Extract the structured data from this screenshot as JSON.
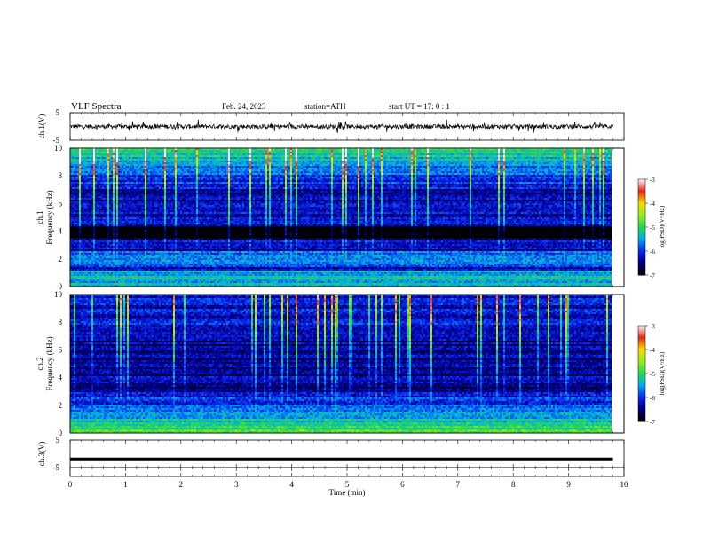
{
  "header": {
    "title": "VLF  Spectra",
    "date": "Feb. 24, 2023",
    "station": "station=ATH",
    "start_ut": "start  UT  =   17: 0  : 1"
  },
  "chart_data": [
    {
      "type": "line",
      "name": "ch1-waveform",
      "ylabel": "ch.1(V)",
      "ylim": [
        -5,
        5
      ],
      "y_ticks": [
        "5",
        "-5"
      ],
      "x_range_min": [
        0,
        9.8
      ],
      "signal_level": 0,
      "noise_amplitude": 0.8
    },
    {
      "type": "heatmap",
      "name": "ch1-spectrogram",
      "ylabel": "Frequency  (kHz)",
      "channel_label": "ch.1",
      "ylim": [
        0,
        10
      ],
      "y_ticks": [
        "10",
        "8",
        "6",
        "4",
        "2",
        "0"
      ],
      "colorbar": {
        "label": "log(PSD)(V²/Hz)",
        "range": [
          -7,
          -3
        ],
        "ticks": [
          "-3",
          "-4",
          "-5",
          "-6",
          "-7"
        ]
      }
    },
    {
      "type": "heatmap",
      "name": "ch2-spectrogram",
      "ylabel": "Frequency  (kHz)",
      "channel_label": "ch.2",
      "ylim": [
        0,
        10
      ],
      "y_ticks": [
        "10",
        "8",
        "6",
        "4",
        "2",
        "0"
      ],
      "colorbar": {
        "label": "log(PSD)(V²/Hz)",
        "range": [
          -7,
          -3
        ],
        "ticks": [
          "-3",
          "-4",
          "-5",
          "-6",
          "-7"
        ]
      }
    },
    {
      "type": "line",
      "name": "ch3-waveform",
      "ylabel": "ch.3(V)",
      "ylim": [
        -5,
        5
      ],
      "y_ticks": [
        "5",
        "-5"
      ],
      "x_range_min": [
        0,
        9.8
      ],
      "signal_level": -2
    }
  ],
  "xaxis": {
    "label": "Time  (min)",
    "range": [
      0,
      10
    ],
    "ticks": [
      "0",
      "1",
      "2",
      "3",
      "4",
      "5",
      "6",
      "7",
      "8",
      "9",
      "10"
    ]
  }
}
